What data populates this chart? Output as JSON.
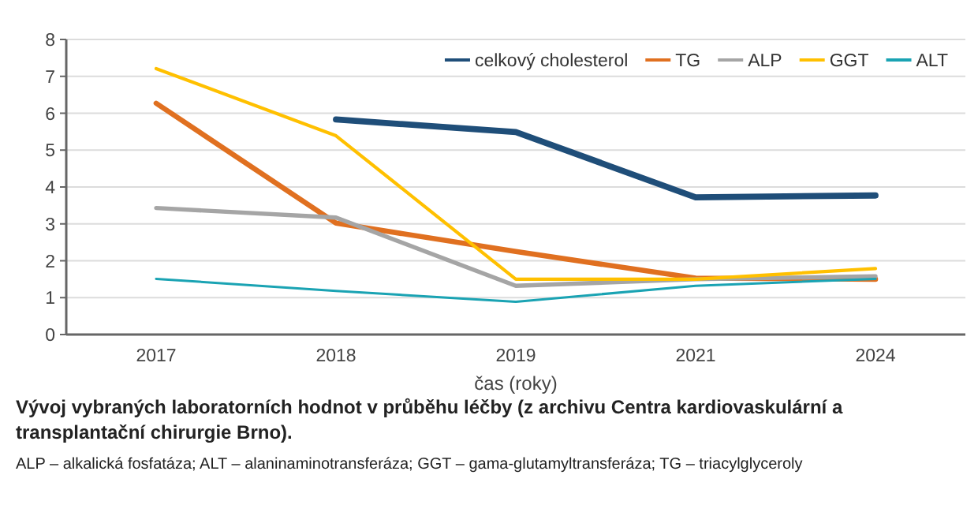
{
  "chart_data": {
    "type": "line",
    "categories": [
      "2017",
      "2018",
      "2019",
      "2021",
      "2024"
    ],
    "series": [
      {
        "name": "celkový cholesterol",
        "color": "#1f4e79",
        "values": [
          null,
          5.83,
          5.49,
          3.72,
          3.77
        ]
      },
      {
        "name": "TG",
        "color": "#e07020",
        "values": [
          6.27,
          3.02,
          2.25,
          1.53,
          1.5
        ]
      },
      {
        "name": "ALP",
        "color": "#a5a5a5",
        "values": [
          3.43,
          3.17,
          1.32,
          1.5,
          1.58
        ]
      },
      {
        "name": "GGT",
        "color": "#ffc000",
        "values": [
          7.21,
          5.39,
          1.5,
          1.5,
          1.79
        ]
      },
      {
        "name": "ALT",
        "color": "#1aa3b3",
        "values": [
          1.51,
          1.18,
          0.89,
          1.32,
          1.51
        ]
      }
    ],
    "xlabel": "čas (roky)",
    "ylim": [
      0,
      8
    ],
    "yticks": [
      0,
      1,
      2,
      3,
      4,
      5,
      6,
      7,
      8
    ],
    "grid": "y",
    "legend": "top right",
    "marker": "none",
    "line_style": "solid",
    "annotations": [
      "Vývoj vybraných laboratorních hodnot v průběhu léčby (z archivu Centra kardiovaskulární a transplantační chirurgie Brno).",
      "ALP – alkalická fosfatáza; ALT – alaninaminotransferáza; GGT – gama-glutamyltransferáza; TG – triacylglyceroly"
    ]
  }
}
